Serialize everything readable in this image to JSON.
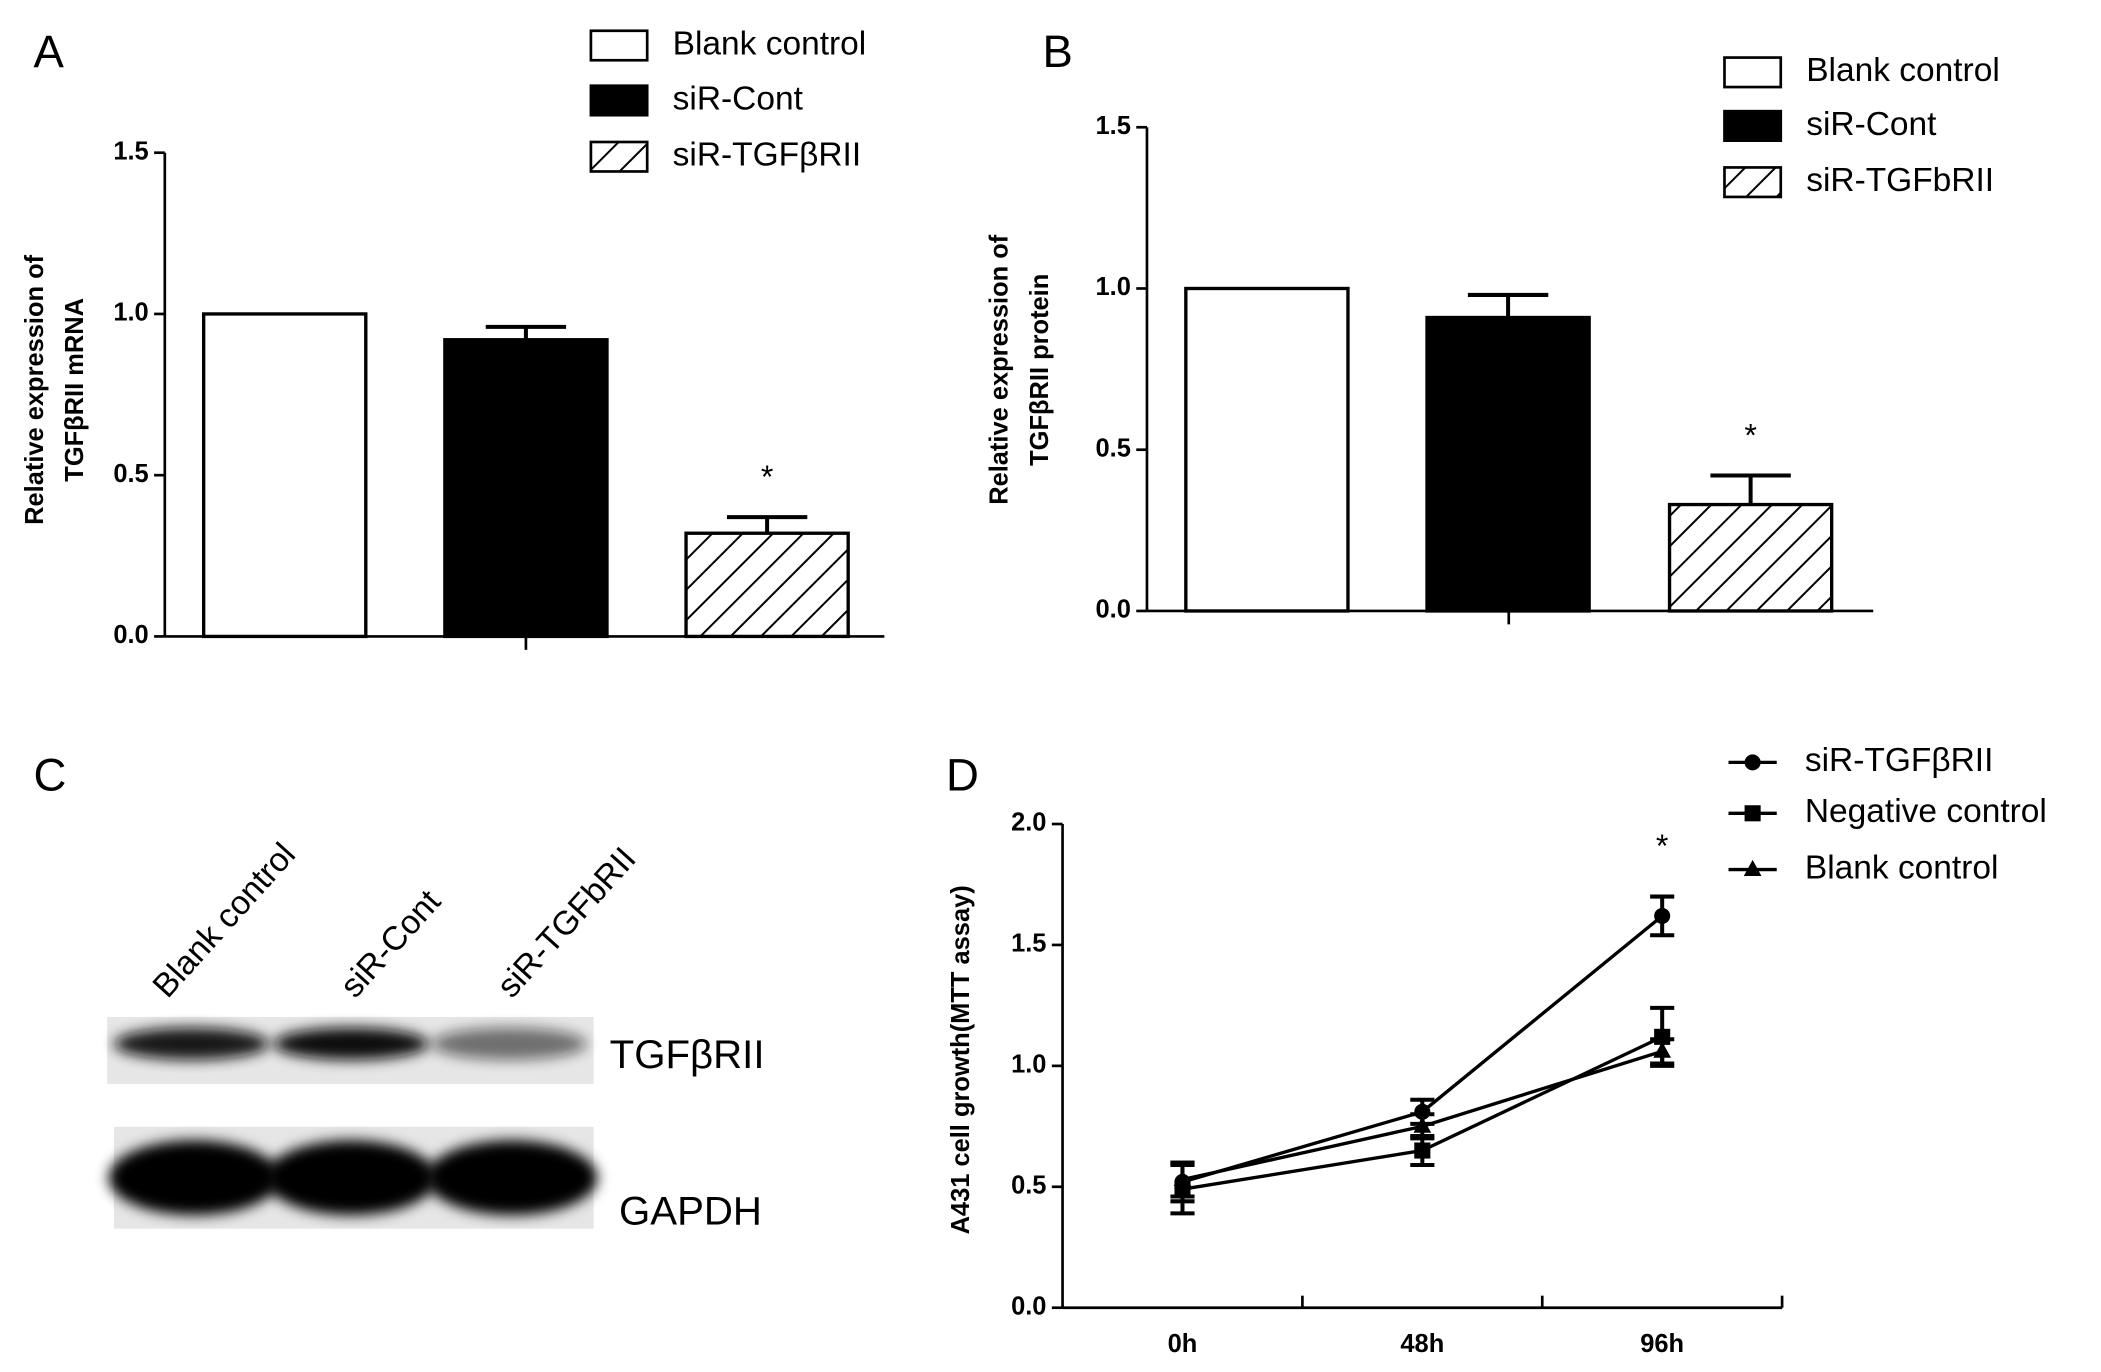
{
  "chart_data": [
    {
      "type": "bar",
      "panel": "A",
      "ylabel": [
        "Relative expression of",
        "TGFβRII mRNA"
      ],
      "categories": [
        null
      ],
      "ylim": [
        0,
        1.5
      ],
      "yticks": [
        {
          "value": 0,
          "label": "0.0"
        },
        0.5,
        {
          "value": 1,
          "label": "1.0"
        },
        1.5
      ],
      "series": [
        {
          "name": "Blank control",
          "color": "#ffffff",
          "values": [
            1.0
          ]
        },
        {
          "name": "siR-Cont",
          "color": "#000000",
          "values": [
            0.92
          ],
          "errors": [
            0.04
          ]
        },
        {
          "name": "siR-TGFβRII",
          "color": "hatch",
          "values": [
            0.32
          ],
          "errors": [
            0.05
          ],
          "annotation": "*"
        }
      ]
    },
    {
      "type": "bar",
      "panel": "B",
      "ylabel": [
        "Relative expression of",
        "TGFβRII protein"
      ],
      "categories": [
        null
      ],
      "ylim": [
        0,
        1.5
      ],
      "yticks": [
        {
          "value": 0,
          "label": "0.0"
        },
        0.5,
        {
          "value": 1,
          "label": "1.0"
        },
        1.5
      ],
      "series": [
        {
          "name": "Blank control",
          "color": "#ffffff",
          "values": [
            1.0
          ]
        },
        {
          "name": "siR-Cont",
          "color": "#000000",
          "values": [
            0.91
          ],
          "errors": [
            0.07
          ]
        },
        {
          "name": "siR-TGFbRII",
          "color": "hatch",
          "values": [
            0.33
          ],
          "errors": [
            0.09
          ],
          "annotation": "*"
        }
      ]
    },
    {
      "type": "blot",
      "panel": "C",
      "lanes": [
        "Blank control",
        "siR-Cont",
        "siR-TGFbRII"
      ],
      "bands": [
        "TGFβRII",
        "GAPDH"
      ]
    },
    {
      "type": "line",
      "panel": "D",
      "ylabel": "A431 cell growth(MTT assay)",
      "categories": [
        "0h",
        "48h",
        "96h"
      ],
      "ylim": [
        0,
        2
      ],
      "yticks": [
        {
          "value": 0,
          "label": "0.0"
        },
        0.5,
        {
          "value": 1,
          "label": "1.0"
        },
        1.5,
        {
          "value": 2,
          "label": "2.0"
        }
      ],
      "series": [
        {
          "name": "siR-TGFβRII",
          "color": "#000000",
          "marker": "circle",
          "values": [
            0.52,
            0.81,
            1.62
          ],
          "errors": [
            0.08,
            0.05,
            0.08
          ],
          "annotation": "*"
        },
        {
          "name": "Negative control",
          "color": "#000000",
          "marker": "square",
          "values": [
            0.49,
            0.65,
            1.12
          ],
          "errors": [
            0.1,
            0.06,
            0.12
          ]
        },
        {
          "name": "Blank control",
          "color": "#000000",
          "marker": "triangle",
          "values": [
            0.53,
            0.75,
            1.06
          ],
          "errors": [
            0.07,
            0.05,
            0.05
          ]
        }
      ]
    }
  ]
}
